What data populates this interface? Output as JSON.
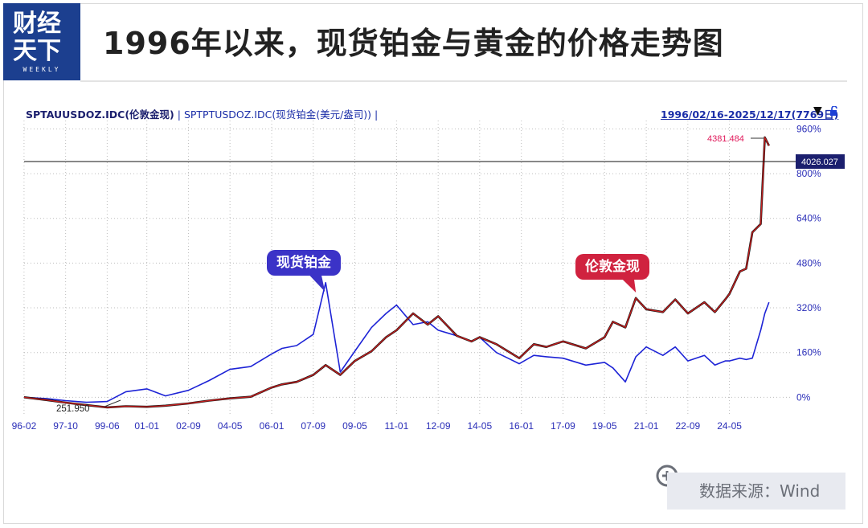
{
  "header": {
    "logo_line1": "财经",
    "logo_line2": "天下",
    "logo_line3": "WEEKLY",
    "title": "1996年以来，现货铂金与黄金的价格走势图"
  },
  "legend": {
    "gold_series": "SPTAUUSDOZ.IDC(伦敦金现)",
    "separator": " | ",
    "platinum_series": "SPTPTUSDOZ.IDC(现货铂金(美元/盎司))",
    "trailing": " |"
  },
  "range": {
    "text": "1996/02/16-2025/12/17(7769日)",
    "dropdown_glyph": "▼"
  },
  "callouts": {
    "platinum": "现货铂金",
    "gold": "伦敦金现"
  },
  "source": "数据来源：Wind",
  "colors": {
    "gold_line": "#c41e1e",
    "gold_line_shadow": "#111111",
    "platinum_line": "#1d23d6",
    "axis_text": "#2b2fb8",
    "price_marker": "#1b1f6e",
    "max_label": "#e0185a"
  },
  "chart_data": {
    "type": "line",
    "title": "",
    "xlabel": "",
    "ylabel": "",
    "x_ticks": [
      "96-02",
      "97-10",
      "99-06",
      "01-01",
      "02-09",
      "04-05",
      "06-01",
      "07-09",
      "09-05",
      "11-01",
      "12-09",
      "14-05",
      "16-01",
      "17-09",
      "19-05",
      "21-01",
      "22-09",
      "24-05"
    ],
    "y_ticks": [
      "0%",
      "160%",
      "320%",
      "480%",
      "640%",
      "800%",
      "960%"
    ],
    "ylim": [
      -45,
      990
    ],
    "y_unit": "cumulative change since 1996-02-16 (%)",
    "current_price_marker": {
      "value": 4026.027,
      "label": "4026.027"
    },
    "max_annotation": {
      "value": 4381.484,
      "label": "4381.484"
    },
    "min_annotation": {
      "value": 251.95,
      "label": "251.950"
    },
    "series": [
      {
        "name": "SPTAUUSDOZ.IDC(伦敦金现)",
        "x": [
          "1996-02",
          "1997-01",
          "1997-10",
          "1998-08",
          "1999-06",
          "2000-03",
          "2001-01",
          "2001-10",
          "2002-09",
          "2003-07",
          "2004-05",
          "2005-03",
          "2006-01",
          "2006-06",
          "2007-01",
          "2007-09",
          "2008-03",
          "2008-10",
          "2009-05",
          "2010-01",
          "2010-08",
          "2011-01",
          "2011-09",
          "2012-04",
          "2012-09",
          "2013-06",
          "2014-01",
          "2014-05",
          "2015-01",
          "2015-12",
          "2016-07",
          "2017-01",
          "2017-09",
          "2018-08",
          "2019-05",
          "2019-09",
          "2020-03",
          "2020-08",
          "2021-01",
          "2021-09",
          "2022-03",
          "2022-09",
          "2023-05",
          "2023-10",
          "2024-03",
          "2024-05",
          "2024-10",
          "2025-01",
          "2025-04",
          "2025-08",
          "2025-10",
          "2025-12"
        ],
        "y": [
          0,
          -10,
          -19,
          -28,
          -36,
          -32,
          -34,
          -30,
          -22,
          -12,
          -4,
          2,
          35,
          46,
          55,
          80,
          115,
          80,
          130,
          165,
          215,
          240,
          300,
          260,
          290,
          220,
          200,
          215,
          190,
          140,
          190,
          180,
          200,
          175,
          215,
          270,
          250,
          355,
          315,
          305,
          350,
          300,
          340,
          305,
          350,
          370,
          450,
          460,
          590,
          620,
          930,
          900
        ]
      },
      {
        "name": "SPTPTUSDOZ.IDC(现货铂金(美元/盎司))",
        "x": [
          "1996-02",
          "1997-01",
          "1997-10",
          "1998-08",
          "1999-06",
          "2000-03",
          "2001-01",
          "2001-10",
          "2002-09",
          "2003-07",
          "2004-05",
          "2005-03",
          "2006-01",
          "2006-06",
          "2007-01",
          "2007-09",
          "2008-03",
          "2008-10",
          "2009-05",
          "2010-01",
          "2010-08",
          "2011-01",
          "2011-09",
          "2012-04",
          "2012-09",
          "2013-06",
          "2014-01",
          "2014-05",
          "2015-01",
          "2015-12",
          "2016-07",
          "2017-01",
          "2017-09",
          "2018-08",
          "2019-05",
          "2019-09",
          "2020-03",
          "2020-08",
          "2021-01",
          "2021-09",
          "2022-03",
          "2022-09",
          "2023-05",
          "2023-10",
          "2024-03",
          "2024-05",
          "2024-10",
          "2025-01",
          "2025-04",
          "2025-08",
          "2025-10",
          "2025-12"
        ],
        "y": [
          0,
          -5,
          -12,
          -18,
          -15,
          20,
          30,
          5,
          25,
          60,
          100,
          110,
          155,
          175,
          185,
          225,
          410,
          90,
          165,
          250,
          300,
          330,
          260,
          270,
          240,
          220,
          200,
          215,
          160,
          120,
          150,
          145,
          140,
          115,
          125,
          105,
          55,
          145,
          180,
          150,
          180,
          130,
          150,
          115,
          130,
          130,
          140,
          135,
          140,
          240,
          300,
          340
        ]
      }
    ]
  }
}
